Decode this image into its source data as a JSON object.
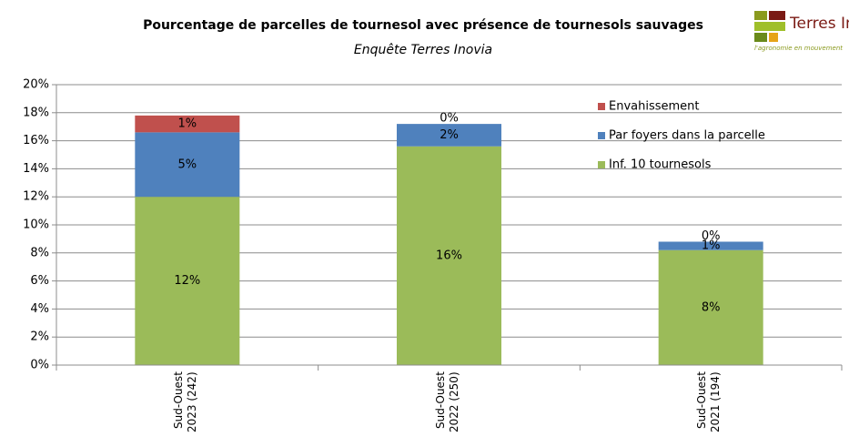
{
  "chart_data": {
    "type": "stacked_bar",
    "title": "Pourcentage de parcelles de tournesol avec présence de tournesols sauvages",
    "subtitle": "Enquête Terres Inovia",
    "categories": [
      "Sud-Ouest\n2023 (242)",
      "Sud-Ouest\n2022 (250)",
      "Sud-Ouest\n2021 (194)"
    ],
    "series": [
      {
        "name": "Inf. 10 tournesols",
        "color": "#9bbb59",
        "values": [
          12,
          15.6,
          8.2
        ],
        "value_labels": [
          "12%",
          "16%",
          "8%"
        ]
      },
      {
        "name": "Par foyers dans la parcelle",
        "color": "#4f81bd",
        "values": [
          4.6,
          1.6,
          0.6
        ],
        "value_labels": [
          "5%",
          "2%",
          "1%"
        ]
      },
      {
        "name": "Envahissement",
        "color": "#c0504d",
        "values": [
          1.2,
          0,
          0
        ],
        "value_labels": [
          "1%",
          "0%",
          "0%"
        ]
      }
    ],
    "ylim": [
      0,
      20
    ],
    "yticks": [
      {
        "value": 0,
        "label": "0%"
      },
      {
        "value": 2,
        "label": "2%"
      },
      {
        "value": 4,
        "label": "4%"
      },
      {
        "value": 6,
        "label": "6%"
      },
      {
        "value": 8,
        "label": "8%"
      },
      {
        "value": 10,
        "label": "10%"
      },
      {
        "value": 12,
        "label": "12%"
      },
      {
        "value": 14,
        "label": "14%"
      },
      {
        "value": 16,
        "label": "16%"
      },
      {
        "value": 18,
        "label": "18%"
      },
      {
        "value": 20,
        "label": "20%"
      }
    ],
    "grid": true,
    "legend": "top-right"
  },
  "logo": {
    "name": "Terres Inovia",
    "tagline": "l'agronomie en mouvement"
  }
}
